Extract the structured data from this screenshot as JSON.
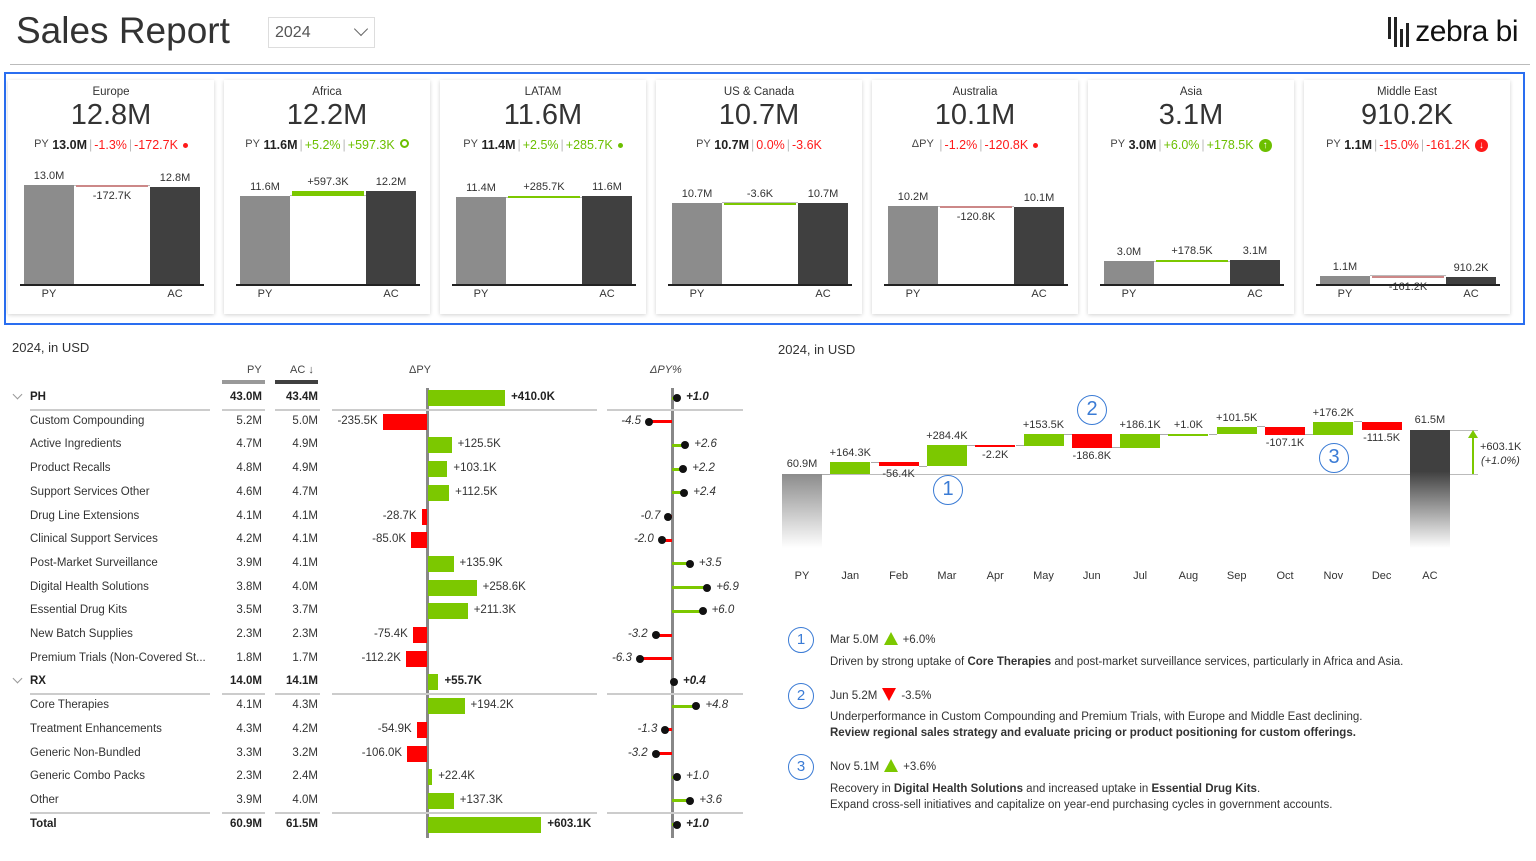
{
  "header": {
    "title": "Sales Report",
    "year": "2024",
    "logo_text": "zebra bi"
  },
  "colors": {
    "positive": "#7cc800",
    "negative": "#ff0000",
    "py_bar": "#8c8c8c",
    "ac_bar": "#404040",
    "annotation": "#3a7bd5",
    "selection_border": "#2a6ef0"
  },
  "cards": [
    {
      "name": "Europe",
      "ac": "12.8M",
      "prefix": "PY",
      "py": "13.0M",
      "pct": "-1.3%",
      "delta": "-172.7K",
      "status": "negative",
      "icon": "red-dot-icon",
      "py_value": 13.0,
      "ac_value": 12.8,
      "py_bar_label": "13.0M",
      "ac_bar_label": "12.8M",
      "x_py": "PY",
      "x_ac": "AC"
    },
    {
      "name": "Africa",
      "ac": "12.2M",
      "prefix": "PY",
      "py": "11.6M",
      "pct": "+5.2%",
      "delta": "+597.3K",
      "status": "positive",
      "icon": "green-circle-icon",
      "py_value": 11.6,
      "ac_value": 12.2,
      "py_bar_label": "11.6M",
      "ac_bar_label": "12.2M",
      "x_py": "PY",
      "x_ac": "AC"
    },
    {
      "name": "LATAM",
      "ac": "11.6M",
      "prefix": "PY",
      "py": "11.4M",
      "pct": "+2.5%",
      "delta": "+285.7K",
      "status": "positive",
      "icon": "green-dot-icon",
      "py_value": 11.4,
      "ac_value": 11.6,
      "py_bar_label": "11.4M",
      "ac_bar_label": "11.6M",
      "x_py": "PY",
      "x_ac": "AC"
    },
    {
      "name": "US & Canada",
      "ac": "10.7M",
      "prefix": "PY",
      "py": "10.7M",
      "pct": "0.0%",
      "delta": "-3.6K",
      "status": "negative",
      "icon": "",
      "py_value": 10.7,
      "ac_value": 10.7,
      "py_bar_label": "10.7M",
      "ac_bar_label": "10.7M",
      "x_py": "PY",
      "x_ac": "AC"
    },
    {
      "name": "Australia",
      "ac": "10.1M",
      "prefix": "ΔPY",
      "py": "",
      "pct": "-1.2%",
      "delta": "-120.8K",
      "status": "negative",
      "icon": "red-dot-icon",
      "py_value": 10.2,
      "ac_value": 10.1,
      "py_bar_label": "10.2M",
      "ac_bar_label": "10.1M",
      "x_py": "PY",
      "x_ac": "AC"
    },
    {
      "name": "Asia",
      "ac": "3.1M",
      "prefix": "PY",
      "py": "3.0M",
      "pct": "+6.0%",
      "delta": "+178.5K",
      "status": "positive",
      "icon": "green-up-circle-icon",
      "py_value": 3.0,
      "ac_value": 3.1,
      "py_bar_label": "3.0M",
      "ac_bar_label": "3.1M",
      "x_py": "PY",
      "x_ac": "AC"
    },
    {
      "name": "Middle East",
      "ac": "910.2K",
      "prefix": "PY",
      "py": "1.1M",
      "pct": "-15.0%",
      "delta": "-161.2K",
      "status": "negative",
      "icon": "red-down-circle-icon",
      "py_value": 1.1,
      "ac_value": 0.91,
      "py_bar_label": "1.1M",
      "ac_bar_label": "910.2K",
      "x_py": "PY",
      "x_ac": "AC"
    }
  ],
  "table": {
    "subtitle": "2024, in USD",
    "headers": {
      "py": "PY",
      "ac": "AC ↓",
      "dpy": "ΔPY",
      "dpct": "ΔPY%"
    },
    "rows": [
      {
        "name": "PH",
        "py": "43.0M",
        "ac": "43.4M",
        "dpy": 410.0,
        "dpy_label": "+410.0K",
        "dpct": 1.0,
        "dpct_label": "+1.0",
        "type": "group"
      },
      {
        "name": "Custom Compounding",
        "py": "5.2M",
        "ac": "5.0M",
        "dpy": -235.5,
        "dpy_label": "-235.5K",
        "dpct": -4.5,
        "dpct_label": "-4.5",
        "type": "item"
      },
      {
        "name": "Active Ingredients",
        "py": "4.7M",
        "ac": "4.9M",
        "dpy": 125.5,
        "dpy_label": "+125.5K",
        "dpct": 2.6,
        "dpct_label": "+2.6",
        "type": "item"
      },
      {
        "name": "Product Recalls",
        "py": "4.8M",
        "ac": "4.9M",
        "dpy": 103.1,
        "dpy_label": "+103.1K",
        "dpct": 2.2,
        "dpct_label": "+2.2",
        "type": "item"
      },
      {
        "name": "Support Services Other",
        "py": "4.6M",
        "ac": "4.7M",
        "dpy": 112.5,
        "dpy_label": "+112.5K",
        "dpct": 2.4,
        "dpct_label": "+2.4",
        "type": "item"
      },
      {
        "name": "Drug Line Extensions",
        "py": "4.1M",
        "ac": "4.1M",
        "dpy": -28.7,
        "dpy_label": "-28.7K",
        "dpct": -0.7,
        "dpct_label": "-0.7",
        "type": "item"
      },
      {
        "name": "Clinical Support Services",
        "py": "4.2M",
        "ac": "4.1M",
        "dpy": -85.0,
        "dpy_label": "-85.0K",
        "dpct": -2.0,
        "dpct_label": "-2.0",
        "type": "item"
      },
      {
        "name": "Post-Market Surveillance",
        "py": "3.9M",
        "ac": "4.1M",
        "dpy": 135.9,
        "dpy_label": "+135.9K",
        "dpct": 3.5,
        "dpct_label": "+3.5",
        "type": "item"
      },
      {
        "name": "Digital Health Solutions",
        "py": "3.8M",
        "ac": "4.0M",
        "dpy": 258.6,
        "dpy_label": "+258.6K",
        "dpct": 6.9,
        "dpct_label": "+6.9",
        "type": "item"
      },
      {
        "name": "Essential Drug Kits",
        "py": "3.5M",
        "ac": "3.7M",
        "dpy": 211.3,
        "dpy_label": "+211.3K",
        "dpct": 6.0,
        "dpct_label": "+6.0",
        "type": "item"
      },
      {
        "name": "New Batch Supplies",
        "py": "2.3M",
        "ac": "2.3M",
        "dpy": -75.4,
        "dpy_label": "-75.4K",
        "dpct": -3.2,
        "dpct_label": "-3.2",
        "type": "item"
      },
      {
        "name": "Premium Trials (Non-Covered St...",
        "py": "1.8M",
        "ac": "1.7M",
        "dpy": -112.2,
        "dpy_label": "-112.2K",
        "dpct": -6.3,
        "dpct_label": "-6.3",
        "type": "item"
      },
      {
        "name": "RX",
        "py": "14.0M",
        "ac": "14.1M",
        "dpy": 55.7,
        "dpy_label": "+55.7K",
        "dpct": 0.4,
        "dpct_label": "+0.4",
        "type": "group"
      },
      {
        "name": "Core Therapies",
        "py": "4.1M",
        "ac": "4.3M",
        "dpy": 194.2,
        "dpy_label": "+194.2K",
        "dpct": 4.8,
        "dpct_label": "+4.8",
        "type": "item"
      },
      {
        "name": "Treatment Enhancements",
        "py": "4.3M",
        "ac": "4.2M",
        "dpy": -54.9,
        "dpy_label": "-54.9K",
        "dpct": -1.3,
        "dpct_label": "-1.3",
        "type": "item"
      },
      {
        "name": "Generic Non-Bundled",
        "py": "3.3M",
        "ac": "3.2M",
        "dpy": -106.0,
        "dpy_label": "-106.0K",
        "dpct": -3.2,
        "dpct_label": "-3.2",
        "type": "item"
      },
      {
        "name": "Generic Combo Packs",
        "py": "2.3M",
        "ac": "2.4M",
        "dpy": 22.4,
        "dpy_label": "+22.4K",
        "dpct": 1.0,
        "dpct_label": "+1.0",
        "type": "item"
      },
      {
        "name": "Other",
        "py": "3.9M",
        "ac": "4.0M",
        "dpy": 137.3,
        "dpy_label": "+137.3K",
        "dpct": 3.6,
        "dpct_label": "+3.6",
        "type": "item"
      },
      {
        "name": "Total",
        "py": "60.9M",
        "ac": "61.5M",
        "dpy": 603.1,
        "dpy_label": "+603.1K",
        "dpct": 1.0,
        "dpct_label": "+1.0",
        "type": "total"
      }
    ]
  },
  "chart_data": {
    "type": "waterfall",
    "subtitle": "2024, in USD",
    "categories": [
      "PY",
      "Jan",
      "Feb",
      "Mar",
      "Apr",
      "May",
      "Jun",
      "Jul",
      "Aug",
      "Sep",
      "Oct",
      "Nov",
      "Dec",
      "AC"
    ],
    "start": {
      "value": 60.9,
      "label": "60.9M"
    },
    "end": {
      "value": 61.5,
      "label": "61.5M"
    },
    "deltas_k": [
      164.3,
      -56.4,
      284.4,
      -2.2,
      153.5,
      -186.8,
      186.1,
      1.0,
      101.5,
      -107.1,
      176.2,
      -111.5
    ],
    "delta_labels": [
      "+164.3K",
      "-56.4K",
      "+284.4K",
      "-2.2K",
      "+153.5K",
      "-186.8K",
      "+186.1K",
      "+1.0K",
      "+101.5K",
      "-107.1K",
      "+176.2K",
      "-111.5K"
    ],
    "total_delta": {
      "label": "+603.1K",
      "pct": "(+1.0%)"
    },
    "annotations": [
      {
        "n": "1",
        "month": "Mar"
      },
      {
        "n": "2",
        "month": "Jun"
      },
      {
        "n": "3",
        "month": "Nov"
      }
    ]
  },
  "notes": [
    {
      "n": "1",
      "head": "Mar 5.0M",
      "dir": "up",
      "pct": "+6.0%",
      "lines": [
        [
          {
            "t": "Driven by strong uptake of "
          },
          {
            "t": "Core Therapies",
            "b": true
          },
          {
            "t": " and post-market surveillance services, particularly in Africa and Asia."
          }
        ]
      ]
    },
    {
      "n": "2",
      "head": "Jun 5.2M",
      "dir": "down",
      "pct": "-3.5%",
      "lines": [
        [
          {
            "t": "Underperformance in Custom Compounding and Premium Trials, with Europe and Middle East declining."
          }
        ],
        [
          {
            "t": "Review regional sales strategy and evaluate pricing or product positioning for custom offerings.",
            "b": true
          }
        ]
      ]
    },
    {
      "n": "3",
      "head": "Nov 5.1M",
      "dir": "up",
      "pct": "+3.6%",
      "lines": [
        [
          {
            "t": "Recovery in "
          },
          {
            "t": "Digital Health Solutions",
            "b": true
          },
          {
            "t": " and increased uptake in "
          },
          {
            "t": "Essential Drug Kits",
            "b": true
          },
          {
            "t": "."
          }
        ],
        [
          {
            "t": "Expand cross-sell initiatives and capitalize on year-end purchasing cycles in government accounts."
          }
        ]
      ]
    }
  ]
}
